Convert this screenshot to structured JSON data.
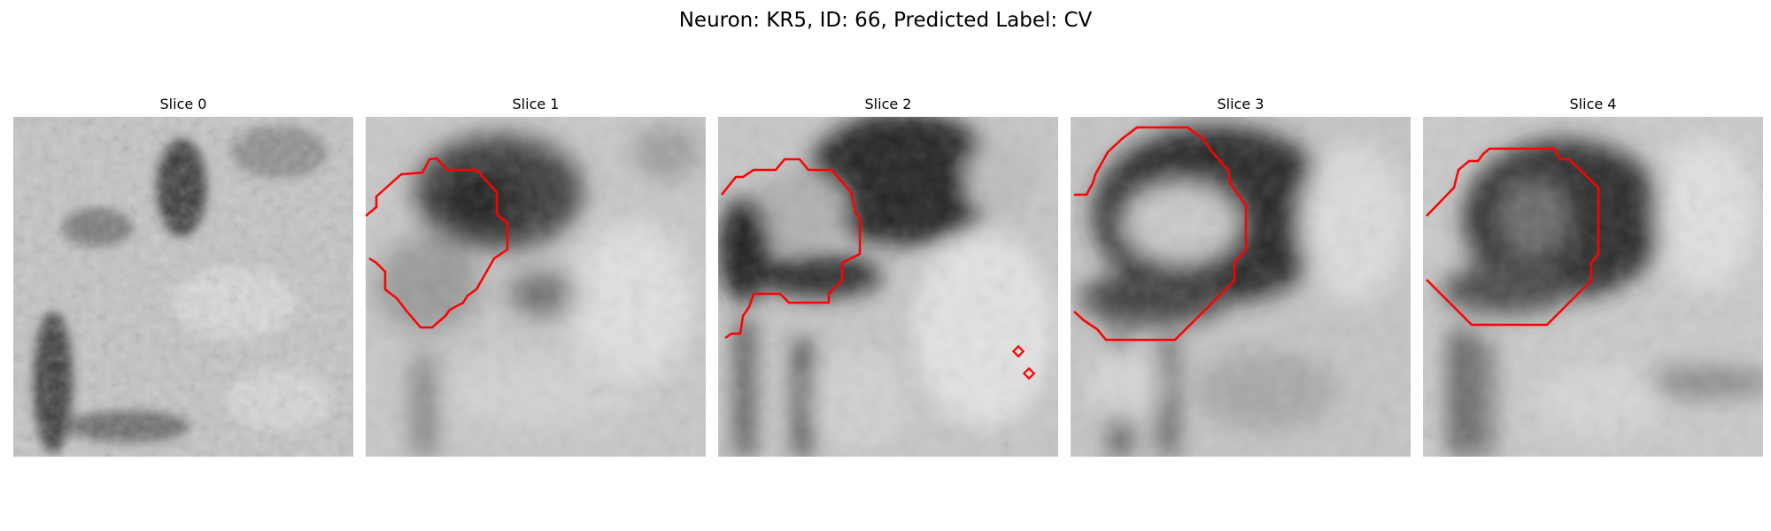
{
  "figure": {
    "title": "Neuron: KR5, ID: 66, Predicted Label: CV"
  },
  "colors": {
    "contour": "#ff0000",
    "background": "#ffffff"
  },
  "panels": [
    {
      "title": "Slice 0",
      "has_contour": false
    },
    {
      "title": "Slice 1",
      "has_contour": true
    },
    {
      "title": "Slice 2",
      "has_contour": true
    },
    {
      "title": "Slice 3",
      "has_contour": true
    },
    {
      "title": "Slice 4",
      "has_contour": true
    }
  ]
}
